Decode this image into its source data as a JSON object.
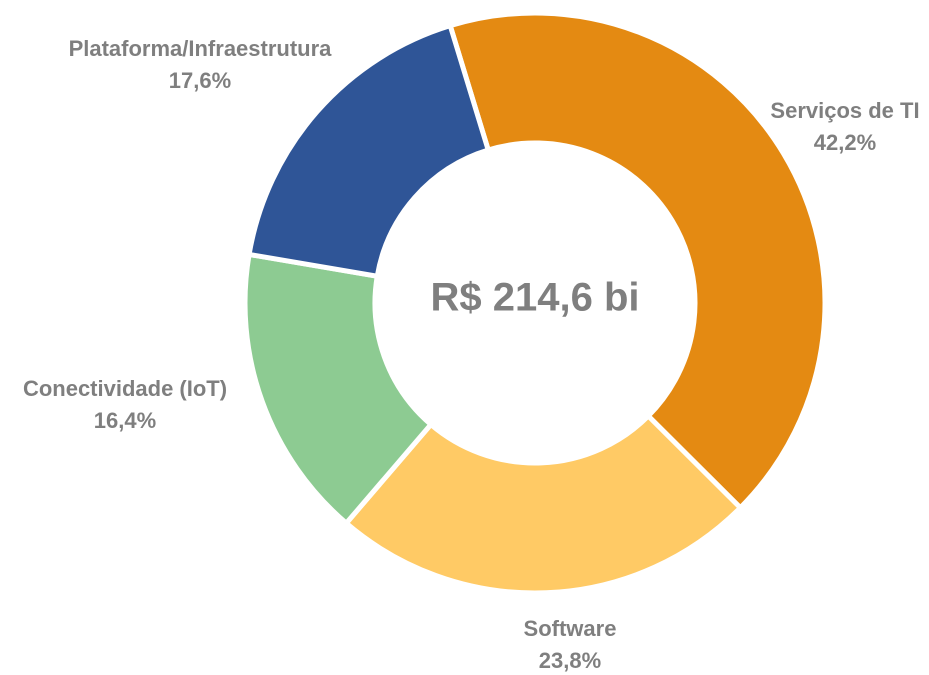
{
  "chart_data": {
    "type": "donut",
    "center_label": "R$ 214,6 bi",
    "categories": [
      "Serviços de TI",
      "Software",
      "Conectividade (IoT)",
      "Plataforma/Infraestrutura"
    ],
    "values": [
      42.2,
      23.8,
      16.4,
      17.6
    ],
    "value_labels": [
      "42,2%",
      "23,8%",
      "16,4%",
      "17,6%"
    ],
    "colors": [
      "#E48A12",
      "#FFCA65",
      "#8DCB92",
      "#2F5597"
    ]
  }
}
